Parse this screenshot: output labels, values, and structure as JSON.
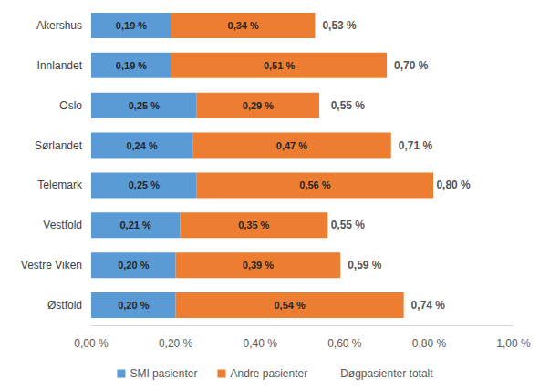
{
  "chart_data": {
    "type": "bar",
    "orientation": "horizontal",
    "stacked": true,
    "data_labels": true,
    "grid": false,
    "legend": "bottom",
    "categories": [
      "Akershus",
      "Innlandet",
      "Oslo",
      "Sørlandet",
      "Telemark",
      "Vestfold",
      "Vestre Viken",
      "Østfold"
    ],
    "xlim": [
      0,
      1
    ],
    "xticks": [
      {
        "value": 0,
        "label": "0,00 %"
      },
      {
        "value": 0.2,
        "label": "0,20 %"
      },
      {
        "value": 0.4,
        "label": "0,40 %"
      },
      {
        "value": 0.6,
        "label": "0,60 %"
      },
      {
        "value": 0.8,
        "label": "0,80 %"
      },
      {
        "value": 1,
        "label": "1,00 %"
      }
    ],
    "series": [
      {
        "name": "SMI pasienter",
        "color": "#5b9bd5",
        "values": [
          0.19,
          0.19,
          0.25,
          0.24,
          0.25,
          0.21,
          0.2,
          0.2
        ],
        "value_labels": [
          "0,19 %",
          "0,19 %",
          "0,25 %",
          "0,24 %",
          "0,25 %",
          "0,21 %",
          "0,20 %",
          "0,20 %"
        ]
      },
      {
        "name": "Andre pasienter",
        "color": "#ed7d31",
        "values": [
          0.34,
          0.51,
          0.29,
          0.47,
          0.56,
          0.35,
          0.39,
          0.54
        ],
        "value_labels": [
          "0,34 %",
          "0,51 %",
          "0,29 %",
          "0,47 %",
          "0,56 %",
          "0,35 %",
          "0,39 %",
          "0,54 %"
        ]
      },
      {
        "name": "Døgpasienter totalt",
        "type": "scatter",
        "values": [
          0.53,
          0.7,
          0.55,
          0.71,
          0.8,
          0.55,
          0.59,
          0.74
        ],
        "value_labels": [
          "0,53 %",
          "0,70 %",
          "0,55 %",
          "0,71 %",
          "0,80 %",
          "0,55 %",
          "0,59 %",
          "0,74 %"
        ]
      }
    ]
  }
}
